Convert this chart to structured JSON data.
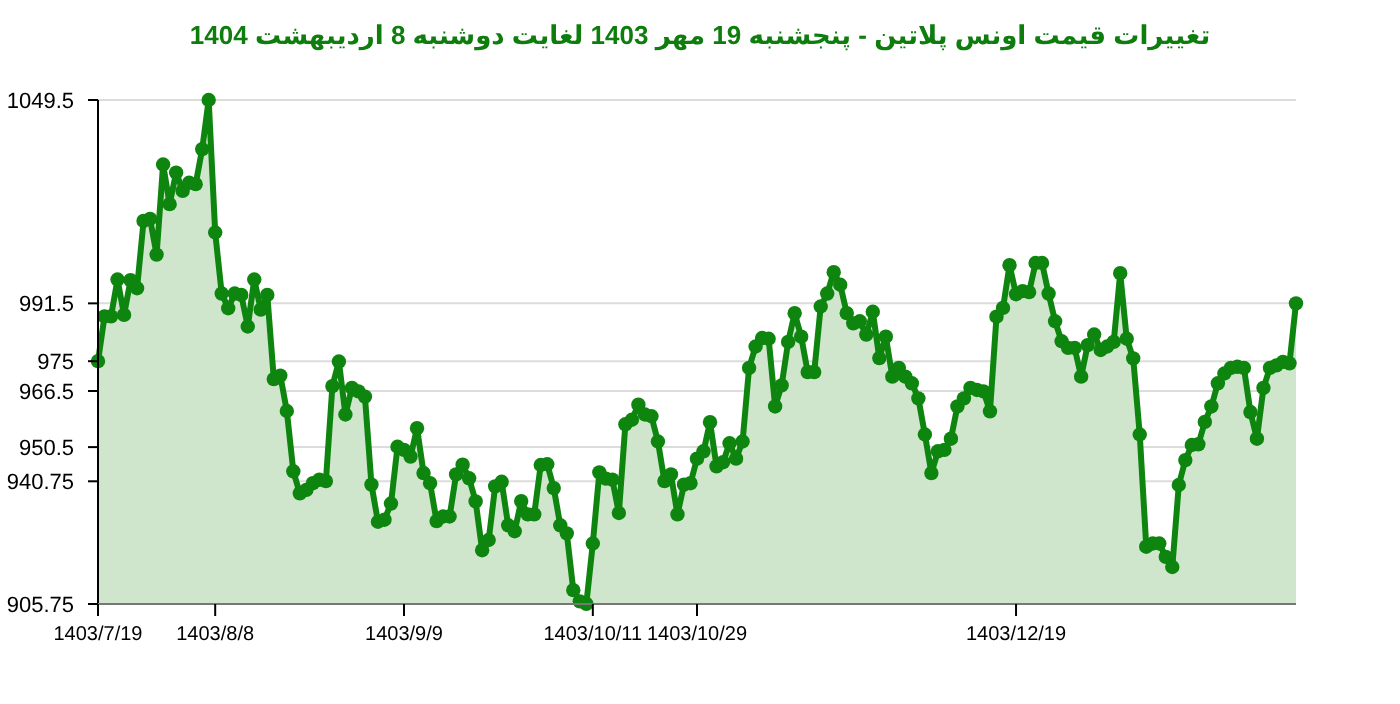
{
  "chart_data": {
    "type": "area",
    "title": "تغییرات قیمت اونس پلاتین - پنجشنبه  19 مهر 1403 لغایت  دوشنبه  8 اردیبهشت 1404",
    "categories": [
      "1403/7/19",
      null,
      null,
      null,
      null,
      null,
      null,
      null,
      null,
      null,
      null,
      null,
      null,
      null,
      null,
      null,
      null,
      null,
      "1403/8/8",
      null,
      null,
      null,
      null,
      null,
      null,
      null,
      null,
      null,
      null,
      null,
      null,
      null,
      null,
      null,
      null,
      null,
      null,
      null,
      null,
      null,
      null,
      null,
      null,
      null,
      null,
      null,
      null,
      "1403/9/9",
      null,
      null,
      null,
      null,
      null,
      null,
      null,
      null,
      null,
      null,
      null,
      null,
      null,
      null,
      null,
      null,
      null,
      null,
      null,
      null,
      null,
      null,
      null,
      null,
      null,
      null,
      null,
      null,
      "1403/10/11",
      null,
      null,
      null,
      null,
      null,
      null,
      null,
      null,
      null,
      null,
      null,
      null,
      null,
      null,
      null,
      "1403/10/29",
      null,
      null,
      null,
      null,
      null,
      null,
      null,
      null,
      null,
      null,
      null,
      null,
      null,
      null,
      null,
      null,
      null,
      null,
      null,
      null,
      null,
      null,
      null,
      null,
      null,
      null,
      null,
      null,
      null,
      null,
      null,
      null,
      null,
      null,
      null,
      null,
      null,
      null,
      null,
      null,
      null,
      null,
      null,
      null,
      null,
      null,
      null,
      null,
      "1403/12/19",
      null,
      null,
      null,
      null,
      null,
      null,
      null,
      null,
      null,
      null,
      null,
      null,
      null,
      null,
      null,
      null,
      null,
      null,
      null,
      null,
      null,
      null,
      null,
      null,
      null,
      null,
      null,
      null,
      null,
      null,
      null,
      null,
      null,
      null,
      null,
      null,
      null,
      null,
      null,
      null,
      null,
      null,
      null
    ],
    "series": [
      {
        "color": "#0e850e",
        "values": [
          975,
          987.8,
          987.8,
          998.3,
          988.2,
          998.1,
          995.8,
          1015,
          1015.6,
          1005.4,
          1031.1,
          1019.8,
          1028.8,
          1023.6,
          1025.9,
          1025.5,
          1035.5,
          1049.5,
          1011.7,
          994.3,
          990.1,
          994.3,
          993.9,
          984.9,
          998.3,
          989.7,
          993.9,
          969.9,
          970.9,
          960.8,
          943.6,
          937.3,
          938.3,
          940.2,
          941.2,
          940.8,
          967.9,
          974.9,
          959.8,
          967.4,
          966.4,
          964.9,
          939.8,
          929.2,
          929.8,
          934.4,
          950.6,
          949.7,
          947.8,
          955.9,
          943.1,
          940.2,
          929.4,
          930.7,
          930.7,
          942.7,
          945.5,
          941.6,
          935,
          921.1,
          924,
          939.3,
          940.6,
          928.2,
          926.5,
          935.1,
          931.3,
          931.3,
          945.4,
          945.6,
          938.8,
          928.2,
          925.9,
          909.7,
          906.5,
          905.8,
          923,
          943.3,
          941.5,
          941.2,
          931.7,
          957,
          958.3,
          962.6,
          959.8,
          959.3,
          952.1,
          940.8,
          942.7,
          931.3,
          939.8,
          940.2,
          947.2,
          949.3,
          957.6,
          945,
          946.2,
          951.6,
          947.2,
          952.1,
          973.1,
          979.2,
          981.6,
          981.4,
          962.1,
          968.1,
          980.5,
          988.7,
          982,
          971.9,
          971.9,
          990.6,
          994.3,
          1000.4,
          996.8,
          988.7,
          985.8,
          986.4,
          982.6,
          989.1,
          975.9,
          982,
          970.6,
          973.1,
          970.6,
          968.7,
          964.4,
          954.1,
          943.1,
          949.3,
          949.7,
          952.9,
          962.1,
          964.4,
          967.4,
          966.8,
          966.4,
          960.7,
          987.7,
          990.2,
          1002.4,
          994.1,
          995,
          994.7,
          1003,
          1003,
          994.3,
          986.4,
          980.7,
          978.8,
          978.8,
          970.6,
          979.6,
          982.6,
          978.2,
          979.2,
          980.5,
          1000.1,
          981.4,
          975.8,
          954.1,
          922.1,
          923,
          923,
          919.2,
          916.3,
          939.7,
          946.8,
          951.1,
          951.3,
          957.7,
          962.1,
          968.7,
          971.5,
          973.1,
          973.4,
          973.1,
          960.5,
          952.9,
          967.4,
          973.1,
          973.8,
          974.8,
          974.4,
          991.5
        ]
      }
    ],
    "ylim": [
      905.75,
      1049.5
    ],
    "yticks": [
      905.75,
      940.75,
      950.5,
      966.5,
      975,
      991.5,
      1049.5
    ],
    "grid": "y",
    "marker": "circle",
    "line_style": "solid"
  }
}
